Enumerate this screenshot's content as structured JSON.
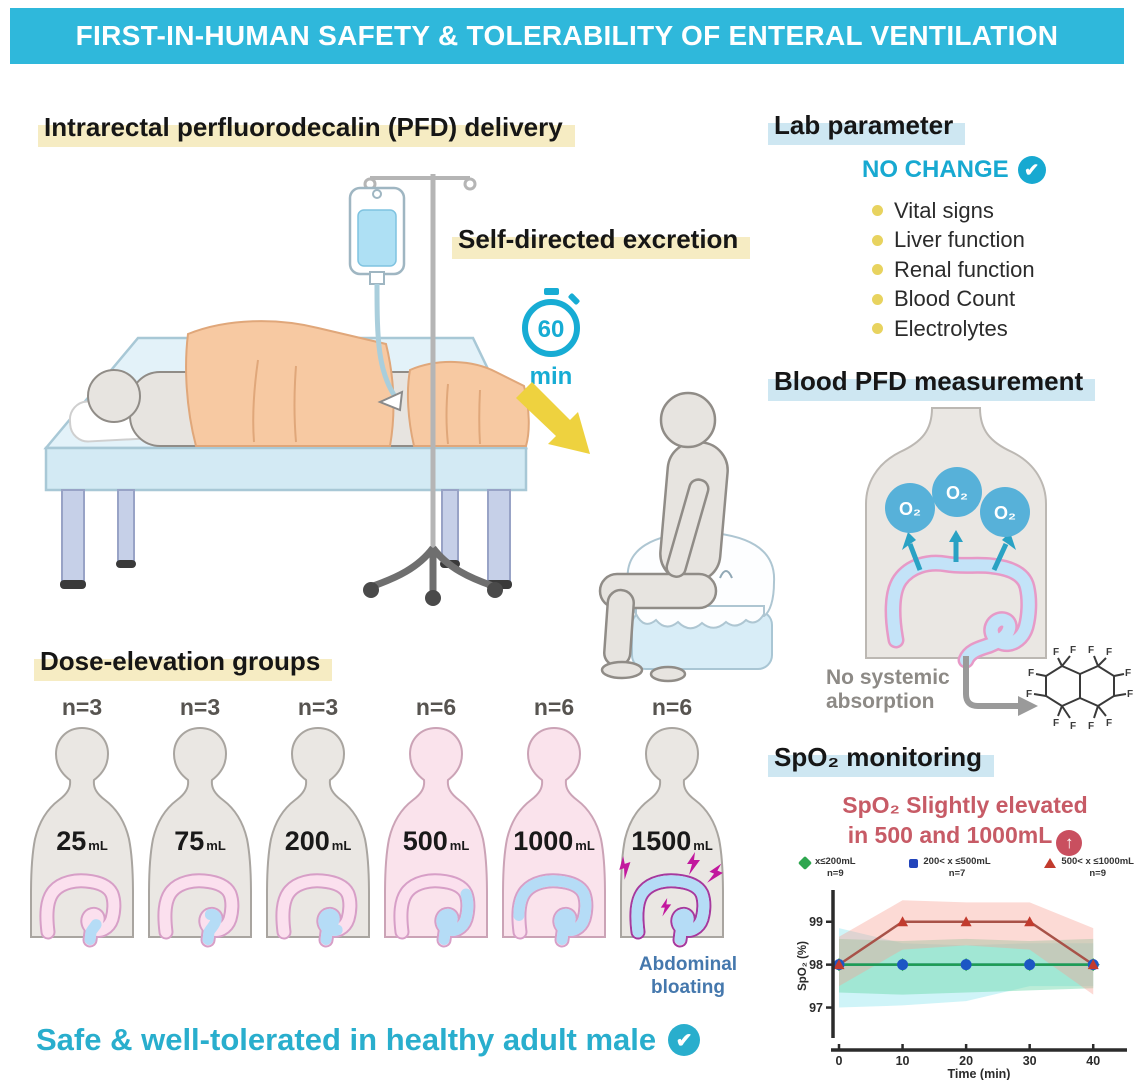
{
  "banner": {
    "title": "FIRST-IN-HUMAN SAFETY & TOLERABILITY OF ENTERAL VENTILATION"
  },
  "icons": {
    "check": "✔",
    "up_arrow": "↑"
  },
  "sections": {
    "delivery": {
      "heading": "Intrarectal perfluorodecalin (PFD) delivery"
    },
    "excretion": {
      "heading": "Self-directed excretion",
      "timer_value": "60",
      "timer_unit": "min"
    },
    "lab": {
      "heading": "Lab parameter",
      "status": "NO CHANGE",
      "items": [
        "Vital signs",
        "Liver function",
        "Renal function",
        "Blood Count",
        "Electrolytes"
      ]
    },
    "blood_pfd": {
      "heading": "Blood PFD measurement",
      "o2_label": "O₂",
      "note": "No systemic absorption",
      "f_label": "F"
    },
    "dose": {
      "heading": "Dose-elevation groups",
      "bloating_note": "Abdominal bloating",
      "groups": [
        {
          "n_label": "n=3",
          "volume": "25",
          "unit": "mL",
          "fill_percent": 8,
          "body_color": "#EAE7E3",
          "outline_color": "#D79FC7"
        },
        {
          "n_label": "n=3",
          "volume": "75",
          "unit": "mL",
          "fill_percent": 15,
          "body_color": "#EAE7E3",
          "outline_color": "#D79FC7"
        },
        {
          "n_label": "n=3",
          "volume": "200",
          "unit": "mL",
          "fill_percent": 28,
          "body_color": "#EAE7E3",
          "outline_color": "#D79FC7"
        },
        {
          "n_label": "n=6",
          "volume": "500",
          "unit": "mL",
          "fill_percent": 48,
          "body_color": "#FAE3EC",
          "outline_color": "#D79FC7"
        },
        {
          "n_label": "n=6",
          "volume": "1000",
          "unit": "mL",
          "fill_percent": 92,
          "body_color": "#FAE3EC",
          "outline_color": "#D79FC7"
        },
        {
          "n_label": "n=6",
          "volume": "1500",
          "unit": "mL",
          "fill_percent": 100,
          "body_color": "#EAE7E3",
          "outline_color": "#A6399E"
        }
      ]
    },
    "spo2": {
      "heading": "SpO₂ monitoring",
      "annotation_line1": "SpO₂ Slightly elevated",
      "annotation_line2": "in 500 and 1000mL"
    }
  },
  "tagline": {
    "text": "Safe & well-tolerated in healthy adult male"
  },
  "chart_data": {
    "type": "line",
    "title": "SpO₂ monitoring",
    "xlabel": "Time (min)",
    "ylabel": "SpO₂ (%)",
    "x": [
      0,
      10,
      20,
      30,
      40
    ],
    "xticks": [
      0,
      10,
      20,
      30,
      40
    ],
    "yticks": [
      97,
      98,
      99
    ],
    "xlim": [
      0,
      45
    ],
    "ylim": [
      96.5,
      99.6
    ],
    "grid": false,
    "legend_position": "top",
    "series": [
      {
        "name": "x≤200mL",
        "n_label": "n=9",
        "marker": "diamond",
        "color": "#1E9E50",
        "marker_color": "#2EA64F",
        "values": [
          98,
          98,
          98,
          98,
          98
        ],
        "band_upper": [
          98.6,
          98.55,
          98.6,
          98.55,
          98.6
        ],
        "band_lower": [
          97.35,
          97.3,
          97.35,
          97.4,
          97.45
        ],
        "band_color": "rgba(105,216,168,0.45)"
      },
      {
        "name": "200< x ≤500mL",
        "n_label": "n=7",
        "marker": "circle",
        "color": "#1C56C4",
        "marker_color": "#1C56C4",
        "values": [
          98,
          98,
          98,
          98,
          98
        ],
        "band_upper": [
          98.85,
          98.5,
          98.45,
          98.5,
          98.5
        ],
        "band_lower": [
          97.0,
          97.05,
          97.15,
          97.5,
          97.5
        ],
        "band_color": "rgba(140,228,238,0.42)"
      },
      {
        "name": "500< x ≤1000mL",
        "n_label": "n=9",
        "marker": "triangle",
        "color": "#A85248",
        "marker_color": "#C23B2E",
        "values": [
          98,
          99,
          99,
          99,
          98
        ],
        "band_upper": [
          98.65,
          99.5,
          99.45,
          99.45,
          98.85
        ],
        "band_lower": [
          97.5,
          98.35,
          98.45,
          98.35,
          97.3
        ],
        "band_color": "rgba(247,162,150,0.4)"
      }
    ]
  }
}
